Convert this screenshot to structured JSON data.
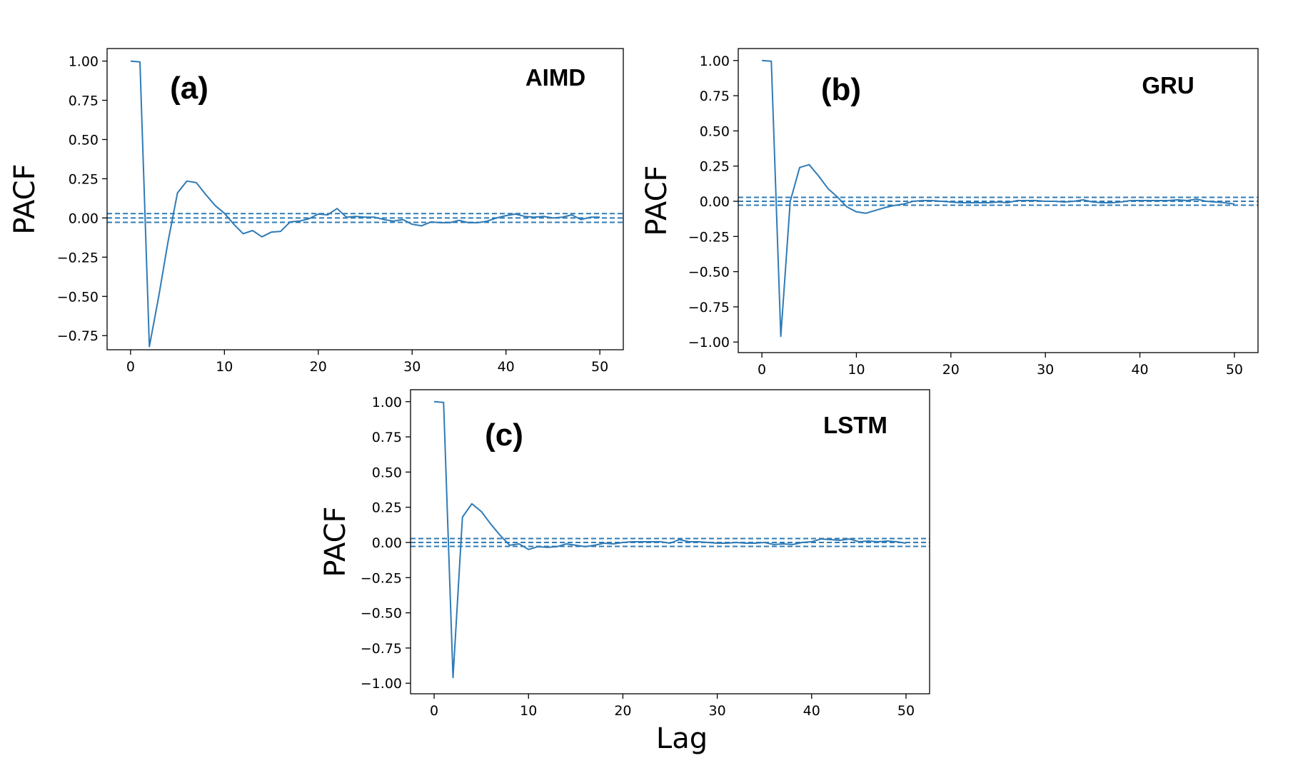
{
  "figure": {
    "xlabel": "Lag",
    "line_color": "#2f7bb6"
  },
  "chart_data": [
    {
      "type": "line",
      "panel_label": "(a)",
      "series_label": "AIMD",
      "xlabel": "",
      "ylabel": "PACF",
      "xlim": [
        -2.5,
        52.5
      ],
      "ylim": [
        -0.84,
        1.08
      ],
      "xticks": [
        0,
        10,
        20,
        30,
        40,
        50
      ],
      "xtick_labels": [
        "0",
        "10",
        "20",
        "30",
        "40",
        "50"
      ],
      "yticks": [
        1.0,
        0.75,
        0.5,
        0.25,
        0.0,
        -0.25,
        -0.5,
        -0.75
      ],
      "ytick_labels": [
        "1.00",
        "0.75",
        "0.50",
        "0.25",
        "0.00",
        "−0.25",
        "−0.50",
        "−0.75"
      ],
      "confidence_band": [
        -0.028,
        0.028
      ],
      "x": [
        0,
        1,
        2,
        3,
        4,
        5,
        6,
        7,
        8,
        9,
        10,
        11,
        12,
        13,
        14,
        15,
        16,
        17,
        18,
        19,
        20,
        21,
        22,
        23,
        24,
        25,
        26,
        27,
        28,
        29,
        30,
        31,
        32,
        33,
        34,
        35,
        36,
        37,
        38,
        39,
        40,
        41,
        42,
        43,
        44,
        45,
        46,
        47,
        48,
        49,
        50
      ],
      "y": [
        1.0,
        0.995,
        -0.82,
        -0.5,
        -0.15,
        0.16,
        0.235,
        0.225,
        0.15,
        0.08,
        0.03,
        -0.04,
        -0.1,
        -0.08,
        -0.12,
        -0.09,
        -0.085,
        -0.025,
        -0.02,
        -0.005,
        0.025,
        0.02,
        0.06,
        0.005,
        0.01,
        0.005,
        0.005,
        -0.01,
        -0.02,
        -0.01,
        -0.04,
        -0.05,
        -0.025,
        -0.03,
        -0.03,
        -0.015,
        -0.03,
        -0.03,
        -0.02,
        0.0,
        0.015,
        0.025,
        0.01,
        0.005,
        0.01,
        0.0,
        0.005,
        0.02,
        -0.01,
        0.005,
        0.005
      ]
    },
    {
      "type": "line",
      "panel_label": "(b)",
      "series_label": "GRU",
      "xlabel": "",
      "ylabel": "PACF",
      "xlim": [
        -2.5,
        52.5
      ],
      "ylim": [
        -1.075,
        1.085
      ],
      "xticks": [
        0,
        10,
        20,
        30,
        40,
        50
      ],
      "xtick_labels": [
        "0",
        "10",
        "20",
        "30",
        "40",
        "50"
      ],
      "yticks": [
        1.0,
        0.75,
        0.5,
        0.25,
        0.0,
        -0.25,
        -0.5,
        -0.75,
        -1.0
      ],
      "ytick_labels": [
        "1.00",
        "0.75",
        "0.50",
        "0.25",
        "0.00",
        "−0.25",
        "−0.50",
        "−0.75",
        "−1.00"
      ],
      "confidence_band": [
        -0.028,
        0.028
      ],
      "x": [
        0,
        1,
        2,
        3,
        4,
        5,
        6,
        7,
        8,
        9,
        10,
        11,
        12,
        13,
        14,
        15,
        16,
        17,
        18,
        19,
        20,
        21,
        22,
        23,
        24,
        25,
        26,
        27,
        28,
        29,
        30,
        31,
        32,
        33,
        34,
        35,
        36,
        37,
        38,
        39,
        40,
        41,
        42,
        43,
        44,
        45,
        46,
        47,
        48,
        49,
        50
      ],
      "y": [
        1.0,
        0.995,
        -0.96,
        0.0,
        0.24,
        0.26,
        0.18,
        0.09,
        0.03,
        -0.04,
        -0.075,
        -0.085,
        -0.065,
        -0.045,
        -0.03,
        -0.02,
        0.0,
        0.005,
        0.005,
        0.0,
        -0.005,
        -0.01,
        -0.01,
        -0.01,
        -0.01,
        -0.005,
        -0.01,
        0.005,
        0.005,
        0.005,
        0.0,
        0.0,
        -0.005,
        0.0,
        0.01,
        -0.005,
        -0.01,
        -0.01,
        -0.005,
        0.005,
        0.005,
        0.005,
        0.005,
        0.005,
        0.01,
        0.005,
        0.015,
        0.0,
        -0.005,
        -0.01,
        -0.02
      ]
    },
    {
      "type": "line",
      "panel_label": "(c)",
      "series_label": "LSTM",
      "xlabel": "",
      "ylabel": "PACF",
      "xlim": [
        -2.5,
        52.5
      ],
      "ylim": [
        -1.075,
        1.085
      ],
      "xticks": [
        0,
        10,
        20,
        30,
        40,
        50
      ],
      "xtick_labels": [
        "0",
        "10",
        "20",
        "30",
        "40",
        "50"
      ],
      "yticks": [
        1.0,
        0.75,
        0.5,
        0.25,
        0.0,
        -0.25,
        -0.5,
        -0.75,
        -1.0
      ],
      "ytick_labels": [
        "1.00",
        "0.75",
        "0.50",
        "0.25",
        "0.00",
        "−0.25",
        "−0.50",
        "−0.75",
        "−1.00"
      ],
      "confidence_band": [
        -0.028,
        0.028
      ],
      "x": [
        0,
        1,
        2,
        3,
        4,
        5,
        6,
        7,
        8,
        9,
        10,
        11,
        12,
        13,
        14,
        15,
        16,
        17,
        18,
        19,
        20,
        21,
        22,
        23,
        24,
        25,
        26,
        27,
        28,
        29,
        30,
        31,
        32,
        33,
        34,
        35,
        36,
        37,
        38,
        39,
        40,
        41,
        42,
        43,
        44,
        45,
        46,
        47,
        48,
        49,
        50
      ],
      "y": [
        1.0,
        0.995,
        -0.96,
        0.18,
        0.275,
        0.22,
        0.13,
        0.05,
        -0.02,
        -0.01,
        -0.05,
        -0.03,
        -0.035,
        -0.03,
        -0.01,
        -0.02,
        -0.03,
        -0.02,
        -0.005,
        -0.01,
        0.0,
        0.005,
        0.005,
        0.005,
        0.005,
        -0.005,
        0.02,
        0.005,
        0.005,
        0.0,
        -0.005,
        -0.005,
        0.0,
        -0.005,
        -0.005,
        0.0,
        -0.015,
        -0.01,
        -0.015,
        0.0,
        0.005,
        0.025,
        0.02,
        0.015,
        0.025,
        0.005,
        0.01,
        0.005,
        0.01,
        0.005,
        -0.005
      ]
    }
  ]
}
